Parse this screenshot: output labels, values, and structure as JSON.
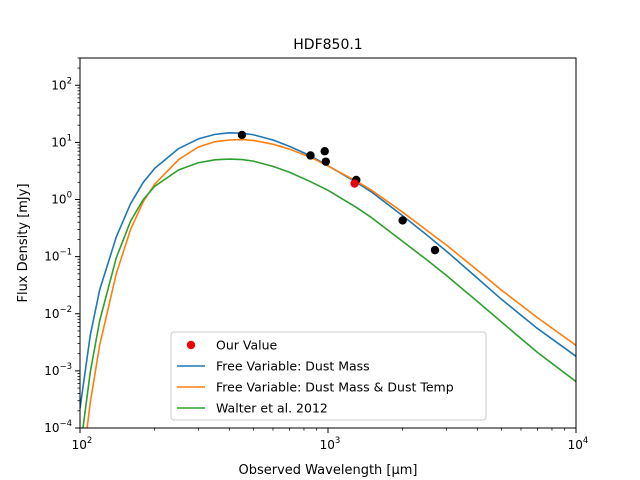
{
  "chart_data": {
    "type": "line",
    "title": "HDF850.1",
    "xlabel": "Observed Wavelength [μm]",
    "ylabel": "Flux Density [mJy]",
    "xscale": "log",
    "yscale": "log",
    "xlim": [
      100,
      10000
    ],
    "ylim": [
      0.0001,
      300
    ],
    "grid": false,
    "legend_position": "lower-center",
    "x_ticks": [
      {
        "value": 100,
        "base": "10",
        "exp": "2"
      },
      {
        "value": 1000,
        "base": "10",
        "exp": "3"
      },
      {
        "value": 10000,
        "base": "10",
        "exp": "4"
      }
    ],
    "y_ticks": [
      {
        "value": 0.0001,
        "base": "10",
        "exp": "−4"
      },
      {
        "value": 0.001,
        "base": "10",
        "exp": "−3"
      },
      {
        "value": 0.01,
        "base": "10",
        "exp": "−2"
      },
      {
        "value": 0.1,
        "base": "10",
        "exp": "−1"
      },
      {
        "value": 1,
        "base": "10",
        "exp": "0"
      },
      {
        "value": 10,
        "base": "10",
        "exp": "1"
      },
      {
        "value": 100,
        "base": "10",
        "exp": "2"
      }
    ],
    "observations": {
      "color": "#000000",
      "points": [
        {
          "x": 450,
          "y": 13.5
        },
        {
          "x": 850,
          "y": 5.9
        },
        {
          "x": 970,
          "y": 7.0
        },
        {
          "x": 980,
          "y": 4.6
        },
        {
          "x": 1300,
          "y": 2.2
        },
        {
          "x": 2000,
          "y": 0.43
        },
        {
          "x": 2700,
          "y": 0.13
        }
      ]
    },
    "our_value": {
      "name": "Our Value",
      "color": "#e8000b",
      "x": 1280,
      "y": 1.9
    },
    "series": [
      {
        "name": "Free Variable: Dust Mass",
        "color": "#1f77b4",
        "x": [
          100,
          110,
          120,
          140,
          160,
          180,
          200,
          250,
          300,
          350,
          400,
          450,
          500,
          600,
          700,
          850,
          1000,
          1300,
          1500,
          2000,
          2500,
          3000,
          4000,
          5000,
          7000,
          10000
        ],
        "y": [
          0.00022,
          0.0042,
          0.026,
          0.22,
          0.85,
          2.0,
          3.5,
          7.8,
          11.5,
          13.8,
          14.7,
          14.5,
          13.6,
          11.0,
          8.5,
          5.8,
          3.9,
          2.0,
          1.35,
          0.52,
          0.24,
          0.125,
          0.042,
          0.018,
          0.0055,
          0.0018
        ]
      },
      {
        "name": "Free Variable: Dust Mass & Dust Temp",
        "color": "#ff7f0e",
        "x": [
          100,
          110,
          120,
          140,
          160,
          180,
          200,
          250,
          300,
          350,
          400,
          450,
          500,
          600,
          700,
          850,
          1000,
          1300,
          1500,
          2000,
          2500,
          3000,
          4000,
          5000,
          7000,
          10000
        ],
        "y": [
          1e-05,
          0.00028,
          0.0028,
          0.05,
          0.3,
          0.92,
          1.85,
          5.0,
          8.3,
          10.3,
          11.0,
          11.2,
          10.8,
          9.3,
          7.6,
          5.5,
          3.85,
          2.1,
          1.45,
          0.6,
          0.29,
          0.16,
          0.058,
          0.026,
          0.0085,
          0.0028
        ]
      },
      {
        "name": "Walter et al. 2012",
        "color": "#2ca02c",
        "x": [
          100,
          110,
          120,
          140,
          160,
          180,
          200,
          250,
          300,
          350,
          400,
          450,
          500,
          600,
          700,
          850,
          1000,
          1300,
          1500,
          2000,
          2500,
          3000,
          4000,
          5000,
          7000,
          10000
        ],
        "y": [
          4e-05,
          0.00095,
          0.0075,
          0.095,
          0.42,
          1.0,
          1.7,
          3.3,
          4.4,
          4.95,
          5.1,
          5.0,
          4.7,
          3.8,
          3.0,
          2.05,
          1.45,
          0.73,
          0.48,
          0.185,
          0.088,
          0.047,
          0.0165,
          0.0072,
          0.0021,
          0.00065
        ]
      }
    ]
  }
}
